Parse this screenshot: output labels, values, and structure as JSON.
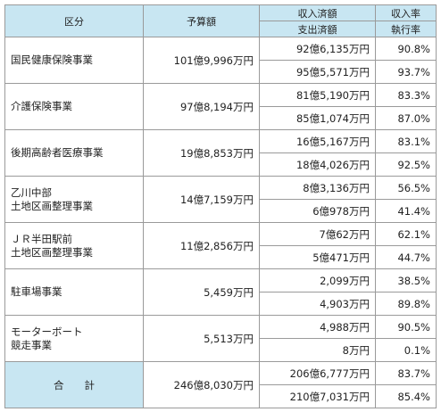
{
  "header": {
    "category": "区分",
    "budget": "予算額",
    "amount_top": "収入済額",
    "amount_bottom": "支出済額",
    "rate_top": "収入率",
    "rate_bottom": "執行率"
  },
  "rows": [
    {
      "name": [
        "国民健康保険事業"
      ],
      "budget": "101億9,996万円",
      "income": "92億6,135万円",
      "expense": "95億5,571万円",
      "income_rate": "90.8%",
      "exec_rate": "93.7%"
    },
    {
      "name": [
        "介護保険事業"
      ],
      "budget": "97億8,194万円",
      "income": "81億5,190万円",
      "expense": "85億1,074万円",
      "income_rate": "83.3%",
      "exec_rate": "87.0%"
    },
    {
      "name": [
        "後期高齢者医療事業"
      ],
      "budget": "19億8,853万円",
      "income": "16億5,167万円",
      "expense": "18億4,026万円",
      "income_rate": "83.1%",
      "exec_rate": "92.5%"
    },
    {
      "name": [
        "乙川中部",
        "土地区画整理事業"
      ],
      "budget": "14億7,159万円",
      "income": "8億3,136万円",
      "expense": "6億978万円",
      "income_rate": "56.5%",
      "exec_rate": "41.4%"
    },
    {
      "name": [
        "ＪＲ半田駅前",
        "土地区画整理事業"
      ],
      "budget": "11億2,856万円",
      "income": "7億62万円",
      "expense": "5億471万円",
      "income_rate": "62.1%",
      "exec_rate": "44.7%"
    },
    {
      "name": [
        "駐車場事業"
      ],
      "budget": "5,459万円",
      "income": "2,099万円",
      "expense": "4,903万円",
      "income_rate": "38.5%",
      "exec_rate": "89.8%"
    },
    {
      "name": [
        "モーターボート",
        "競走事業"
      ],
      "budget": "5,513万円",
      "income": "4,988万円",
      "expense": "8万円",
      "income_rate": "90.5%",
      "exec_rate": "0.1%"
    }
  ],
  "total": {
    "name": "合　　計",
    "budget": "246億8,030万円",
    "income": "206億6,777万円",
    "expense": "210億7,031万円",
    "income_rate": "83.7%",
    "exec_rate": "85.4%"
  }
}
